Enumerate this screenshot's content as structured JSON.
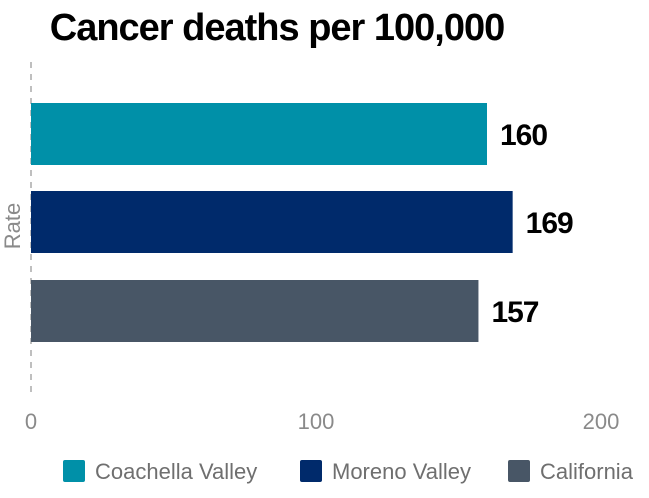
{
  "chart_data": {
    "type": "bar",
    "orientation": "horizontal",
    "title": "Cancer deaths per 100,000",
    "ylabel": "Rate",
    "xlabel": "",
    "categories": [
      "Rate"
    ],
    "series": [
      {
        "name": "Coachella Valley",
        "values": [
          160
        ],
        "color": "#0090a8"
      },
      {
        "name": "Moreno Valley",
        "values": [
          169
        ],
        "color": "#002a6b"
      },
      {
        "name": "California",
        "values": [
          157
        ],
        "color": "#485666"
      }
    ],
    "xlim": [
      0,
      200
    ],
    "xticks": [
      0,
      100,
      200
    ],
    "grid": false,
    "legend_position": "bottom"
  }
}
